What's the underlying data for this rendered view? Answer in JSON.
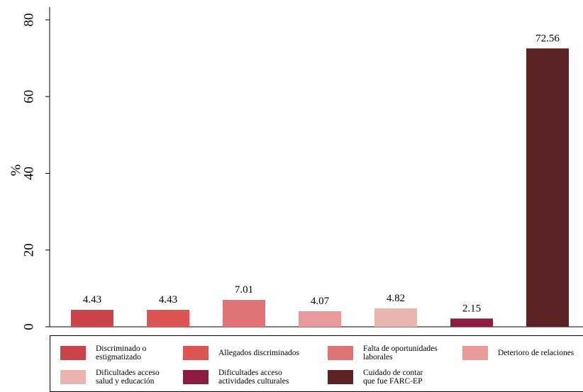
{
  "chart_data": {
    "type": "bar",
    "y_label": "%",
    "ylim": [
      0,
      80
    ],
    "yticks": [
      0,
      20,
      40,
      60,
      80
    ],
    "series": [
      {
        "name": "Discriminado o\nestigmatizado",
        "color": "#cc444b",
        "values": [
          4.43
        ]
      },
      {
        "name": "Allegados discriminados",
        "color": "#dd5552",
        "values": [
          4.43
        ]
      },
      {
        "name": "Falta de oportunidades\nlaborales",
        "color": "#e07474",
        "values": [
          7.01
        ]
      },
      {
        "name": "Deterioro de relaciones",
        "color": "#e89a9a",
        "values": [
          4.07
        ]
      },
      {
        "name": "Dificultades acceso\nsalud y educación",
        "color": "#e8b6ad",
        "values": [
          4.82
        ]
      },
      {
        "name": "Dificultades acceso\nactividades culturales",
        "color": "#8c1d40",
        "values": [
          2.15
        ]
      },
      {
        "name": "Cuidado de contar\nque fue FARC-EP",
        "color": "#5a2424",
        "values": [
          72.56
        ]
      }
    ]
  }
}
